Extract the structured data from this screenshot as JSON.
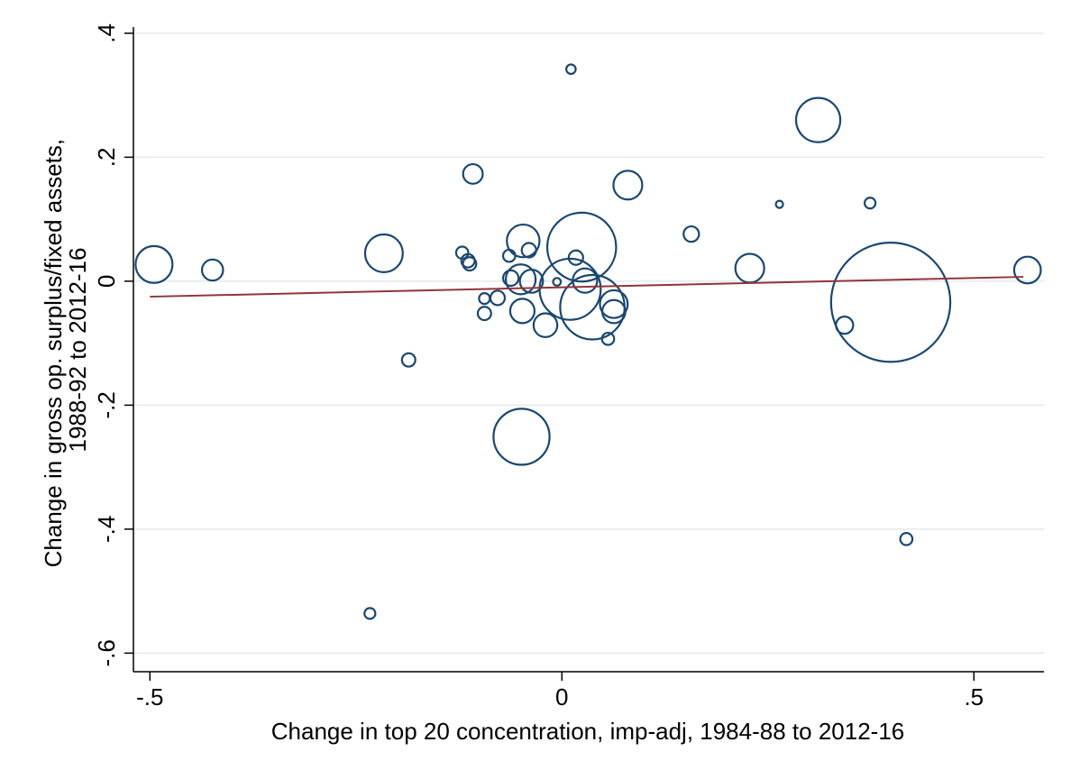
{
  "chart_data": {
    "type": "scatter",
    "title": "",
    "xlabel": "Change in top 20 concentration, imp-adj, 1984-88 to 2012-16",
    "ylabel_lines": [
      "Change in gross op. surplus/fixed assets,",
      "1988-92 to 2012-16"
    ],
    "xlim": [
      -0.52,
      0.585
    ],
    "ylim": [
      -0.63,
      0.41
    ],
    "x_ticks": [
      {
        "value": -0.5,
        "label": "-.5"
      },
      {
        "value": 0,
        "label": "0"
      },
      {
        "value": 0.5,
        "label": ".5"
      }
    ],
    "y_ticks": [
      {
        "value": 0.4,
        "label": ".4"
      },
      {
        "value": 0.2,
        "label": ".2"
      },
      {
        "value": 0,
        "label": "0"
      },
      {
        "value": -0.2,
        "label": "-.2"
      },
      {
        "value": -0.4,
        "label": "-.4"
      },
      {
        "value": -0.6,
        "label": "-.6"
      }
    ],
    "grid": true,
    "bubble_color": "#1a476f",
    "fit_line_color": "#90353b",
    "points": [
      {
        "x": -0.495,
        "y": 0.027,
        "w": 2.3
      },
      {
        "x": -0.424,
        "y": 0.018,
        "w": 0.75
      },
      {
        "x": -0.216,
        "y": 0.045,
        "w": 2.4
      },
      {
        "x": -0.186,
        "y": -0.127,
        "w": 0.3
      },
      {
        "x": -0.233,
        "y": -0.536,
        "w": 0.2
      },
      {
        "x": -0.108,
        "y": 0.173,
        "w": 0.65
      },
      {
        "x": -0.121,
        "y": 0.046,
        "w": 0.25
      },
      {
        "x": -0.114,
        "y": 0.033,
        "w": 0.3
      },
      {
        "x": -0.112,
        "y": 0.028,
        "w": 0.3
      },
      {
        "x": -0.094,
        "y": -0.028,
        "w": 0.2
      },
      {
        "x": -0.094,
        "y": -0.052,
        "w": 0.3
      },
      {
        "x": -0.078,
        "y": -0.027,
        "w": 0.35
      },
      {
        "x": -0.064,
        "y": 0.041,
        "w": 0.25
      },
      {
        "x": -0.062,
        "y": 0.005,
        "w": 0.4
      },
      {
        "x": -0.047,
        "y": 0.065,
        "w": 1.8
      },
      {
        "x": -0.05,
        "y": 0.003,
        "w": 1.5
      },
      {
        "x": -0.048,
        "y": -0.048,
        "w": 1.0
      },
      {
        "x": -0.04,
        "y": 0.05,
        "w": 0.35
      },
      {
        "x": -0.037,
        "y": 0.0,
        "w": 0.9
      },
      {
        "x": -0.049,
        "y": -0.251,
        "w": 5.3
      },
      {
        "x": -0.02,
        "y": -0.071,
        "w": 0.95
      },
      {
        "x": -0.006,
        "y": -0.001,
        "w": 0.1
      },
      {
        "x": 0.011,
        "y": 0.342,
        "w": 0.15
      },
      {
        "x": 0.017,
        "y": 0.038,
        "w": 0.35
      },
      {
        "x": 0.024,
        "y": 0.055,
        "w": 8.0
      },
      {
        "x": 0.01,
        "y": -0.013,
        "w": 6.3
      },
      {
        "x": 0.028,
        "y": 0.001,
        "w": 1.0
      },
      {
        "x": 0.037,
        "y": -0.042,
        "w": 7.0
      },
      {
        "x": 0.056,
        "y": -0.093,
        "w": 0.25
      },
      {
        "x": 0.063,
        "y": -0.037,
        "w": 1.3
      },
      {
        "x": 0.063,
        "y": -0.049,
        "w": 0.9
      },
      {
        "x": 0.08,
        "y": 0.155,
        "w": 1.4
      },
      {
        "x": 0.157,
        "y": 0.076,
        "w": 0.4
      },
      {
        "x": 0.228,
        "y": 0.021,
        "w": 1.4
      },
      {
        "x": 0.264,
        "y": 0.124,
        "w": 0.05
      },
      {
        "x": 0.311,
        "y": 0.26,
        "w": 3.3
      },
      {
        "x": 0.343,
        "y": -0.071,
        "w": 0.5
      },
      {
        "x": 0.374,
        "y": 0.126,
        "w": 0.2
      },
      {
        "x": 0.399,
        "y": -0.034,
        "w": 24.0
      },
      {
        "x": 0.418,
        "y": -0.416,
        "w": 0.25
      },
      {
        "x": 0.565,
        "y": 0.018,
        "w": 1.2
      }
    ],
    "fit_line": {
      "x": [
        -0.5,
        0.56
      ],
      "y": [
        -0.025,
        0.007
      ]
    }
  }
}
